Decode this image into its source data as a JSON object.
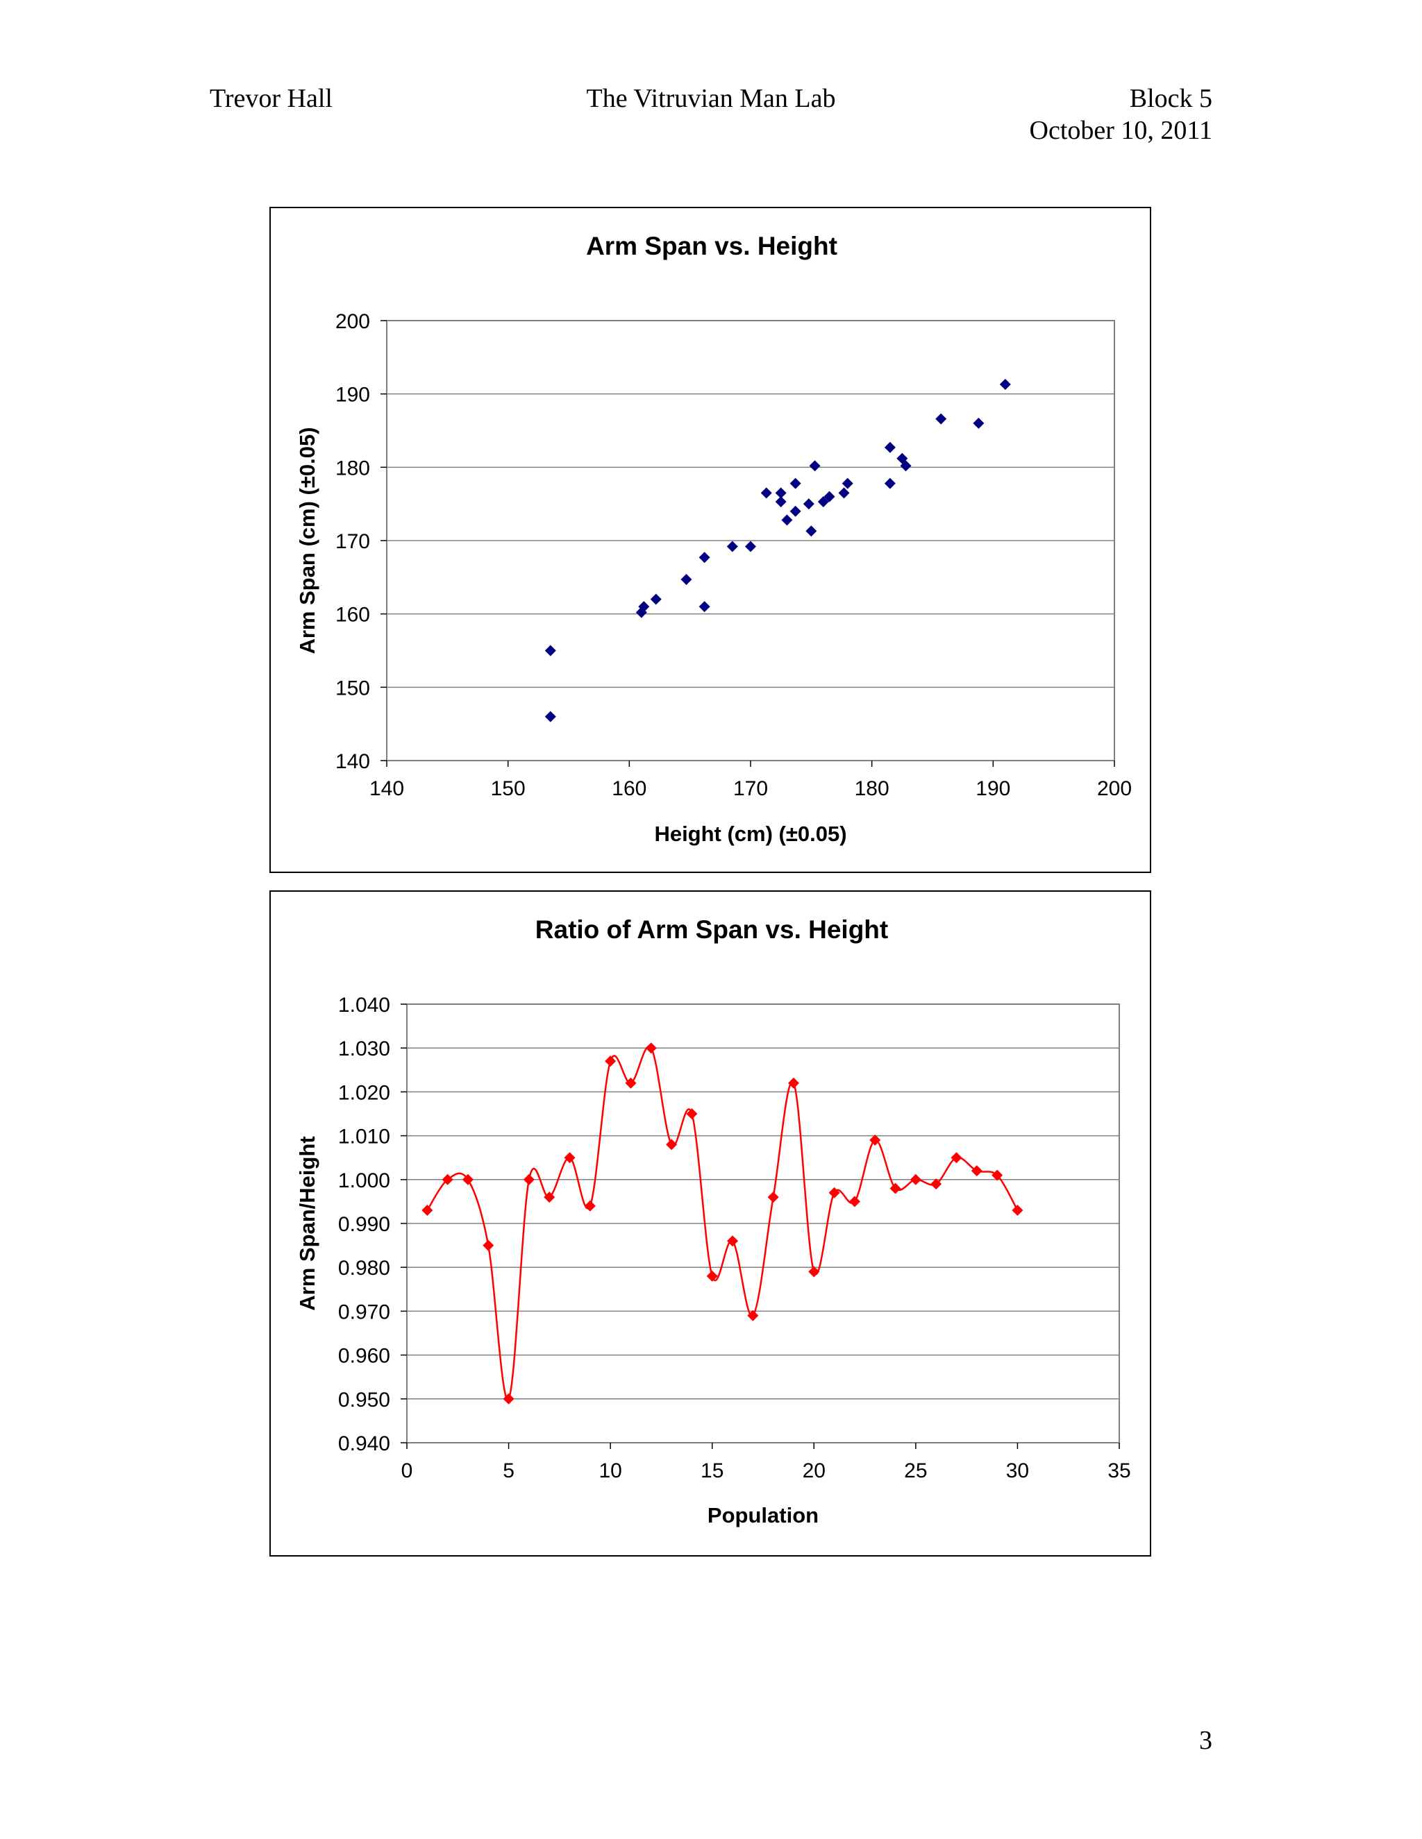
{
  "header": {
    "author": "Trevor Hall",
    "title": "The Vitruvian Man Lab",
    "block": "Block 5",
    "date": "October 10, 2011"
  },
  "page_number": "3",
  "colors": {
    "scatter_marker": "#000080",
    "line_series": "#ff0000",
    "grid": "#808080"
  },
  "chart_data": [
    {
      "type": "scatter",
      "title": "Arm Span vs. Height",
      "xlabel": "Height (cm) (±0.05)",
      "ylabel": "Arm Span (cm) (±0.05)",
      "xlim": [
        140,
        200
      ],
      "ylim": [
        140,
        200
      ],
      "xticks": [
        140,
        150,
        160,
        170,
        180,
        190,
        200
      ],
      "yticks": [
        140,
        150,
        160,
        170,
        180,
        190,
        200
      ],
      "x_tick_labels": [
        "140",
        "150",
        "160",
        "170",
        "180",
        "190",
        "200"
      ],
      "y_tick_labels": [
        "140",
        "150",
        "160",
        "170",
        "180",
        "190",
        "200"
      ],
      "grid": true,
      "legend": false,
      "points": [
        [
          153.5,
          155.0
        ],
        [
          153.5,
          146.0
        ],
        [
          161.0,
          160.2
        ],
        [
          161.2,
          161.0
        ],
        [
          162.2,
          162.0
        ],
        [
          164.7,
          164.7
        ],
        [
          166.2,
          167.7
        ],
        [
          166.2,
          161.0
        ],
        [
          168.5,
          169.2
        ],
        [
          170.0,
          169.2
        ],
        [
          171.3,
          176.5
        ],
        [
          172.5,
          176.5
        ],
        [
          172.5,
          175.3
        ],
        [
          173.0,
          172.8
        ],
        [
          173.7,
          177.8
        ],
        [
          173.7,
          174.0
        ],
        [
          174.8,
          175.0
        ],
        [
          175.0,
          171.3
        ],
        [
          175.3,
          180.2
        ],
        [
          176.0,
          175.3
        ],
        [
          176.5,
          176.0
        ],
        [
          177.7,
          176.5
        ],
        [
          178.0,
          177.8
        ],
        [
          181.5,
          182.7
        ],
        [
          181.5,
          177.8
        ],
        [
          182.5,
          181.2
        ],
        [
          182.8,
          180.2
        ],
        [
          185.7,
          186.6
        ],
        [
          188.8,
          186.0
        ],
        [
          191.0,
          191.3
        ]
      ]
    },
    {
      "type": "line",
      "title": "Ratio of Arm Span vs. Height",
      "xlabel": "Population",
      "ylabel": "Arm Span/Height",
      "xlim": [
        0,
        35
      ],
      "ylim": [
        0.94,
        1.04
      ],
      "xticks": [
        0,
        5,
        10,
        15,
        20,
        25,
        30,
        35
      ],
      "yticks": [
        0.94,
        0.95,
        0.96,
        0.97,
        0.98,
        0.99,
        1.0,
        1.01,
        1.02,
        1.03,
        1.04
      ],
      "x_tick_labels": [
        "0",
        "5",
        "10",
        "15",
        "20",
        "25",
        "30",
        "35"
      ],
      "y_tick_labels": [
        "0.940",
        "0.950",
        "0.960",
        "0.970",
        "0.980",
        "0.990",
        "1.000",
        "1.010",
        "1.020",
        "1.030",
        "1.040"
      ],
      "grid": true,
      "legend": false,
      "smoothed": true,
      "x": [
        1,
        2,
        3,
        4,
        5,
        6,
        7,
        8,
        9,
        10,
        11,
        12,
        13,
        14,
        15,
        16,
        17,
        18,
        19,
        20,
        21,
        22,
        23,
        24,
        25,
        26,
        27,
        28,
        29,
        30
      ],
      "values": [
        0.993,
        1.0,
        1.0,
        0.985,
        0.95,
        1.0,
        0.996,
        1.005,
        0.994,
        1.027,
        1.022,
        1.03,
        1.008,
        1.015,
        0.978,
        0.986,
        0.969,
        0.996,
        1.022,
        0.979,
        0.997,
        0.995,
        1.009,
        0.998,
        1.0,
        0.999,
        1.005,
        1.002,
        1.001,
        0.993
      ]
    }
  ]
}
